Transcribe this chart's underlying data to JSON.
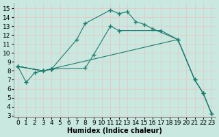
{
  "xlabel": "Humidex (Indice chaleur)",
  "bg_color": "#c8e8e0",
  "line_color": "#1a7a6e",
  "grid_color": "#e8c8c8",
  "xlim": [
    -0.5,
    23.5
  ],
  "ylim": [
    2.8,
    15.6
  ],
  "yticks": [
    3,
    4,
    5,
    6,
    7,
    8,
    9,
    10,
    11,
    12,
    13,
    14,
    15
  ],
  "xticks": [
    0,
    1,
    2,
    3,
    4,
    5,
    6,
    7,
    8,
    9,
    10,
    11,
    12,
    13,
    14,
    15,
    16,
    17,
    18,
    19,
    20,
    21,
    22,
    23
  ],
  "fontsize": 6.5,
  "line1_x": [
    0,
    1,
    2,
    3,
    4
  ],
  "line1_y": [
    8.5,
    6.7,
    7.8,
    8.0,
    8.2
  ],
  "line2_x": [
    0,
    3,
    4,
    7,
    8,
    11,
    12,
    13,
    14,
    15,
    16,
    19,
    21,
    22,
    23
  ],
  "line2_y": [
    8.5,
    8.0,
    8.2,
    11.5,
    13.3,
    14.8,
    14.4,
    14.6,
    13.5,
    13.2,
    12.7,
    11.5,
    7.0,
    5.5,
    3.2
  ],
  "line3_x": [
    0,
    3,
    4,
    8,
    9,
    11,
    12,
    17,
    19,
    21,
    22,
    23
  ],
  "line3_y": [
    8.5,
    8.0,
    8.2,
    8.3,
    9.8,
    13.0,
    12.5,
    12.5,
    11.5,
    7.0,
    5.5,
    3.2
  ],
  "line4_x": [
    0,
    3,
    19,
    21,
    22,
    23
  ],
  "line4_y": [
    8.5,
    8.0,
    11.5,
    7.0,
    5.5,
    3.2
  ]
}
